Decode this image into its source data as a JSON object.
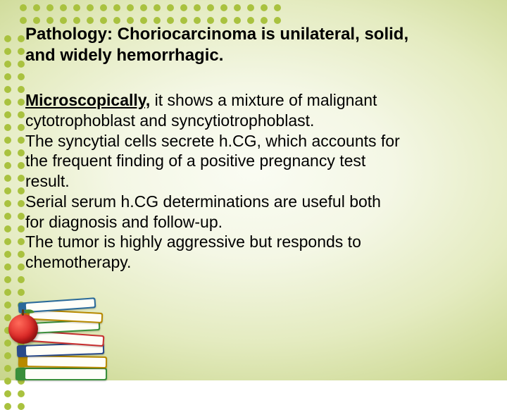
{
  "heading": {
    "lead": "Pathology: ",
    "rest_line1": "Choriocarcinoma is unilateral, solid,",
    "rest_line2": "and widely hemorrhagic."
  },
  "body": {
    "lead": "Microscopically,",
    "l1": " it shows a mixture of malignant",
    "l2": "cytotrophoblast and syncytiotrophoblast.",
    "l3": "The syncytial cells secrete h.CG, which accounts for",
    "l4": "the frequent finding of a positive pregnancy test",
    "l5": "result.",
    "l6": "Serial serum h.CG determinations are useful both",
    "l7": "for diagnosis and follow-up.",
    "l8": "The tumor is highly aggressive but responds to",
    "l9": "chemotherapy."
  },
  "style": {
    "dot_color": "#a9c23f",
    "top_dot_rows": 2,
    "top_dot_cols": 20,
    "side_dot_rows": 30,
    "side_dot_cols": 2
  }
}
